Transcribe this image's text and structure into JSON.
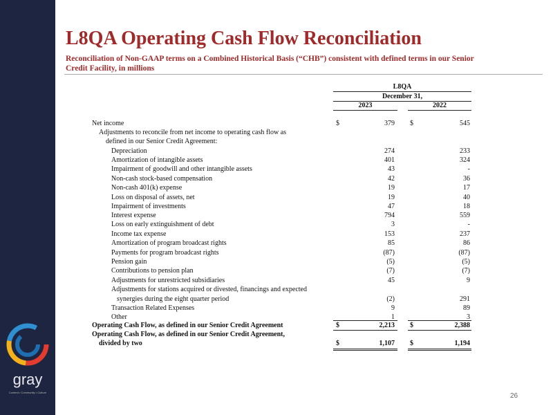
{
  "header": {
    "title": "L8QA Operating Cash Flow Reconciliation",
    "subtitle": "Reconciliation of Non-GAAP terms on a Combined Historical Basis (“CHB”) consistent with defined terms in our Senior Credit Facility, in millions"
  },
  "table": {
    "group": "L8QA",
    "period": "December 31,",
    "columns": [
      "2023",
      "2022"
    ],
    "rows": [
      {
        "label": "Net income",
        "d2023": "$",
        "v2023": "379",
        "d2022": "$",
        "v2022": "545"
      },
      {
        "label": "Adjustments to reconcile from net income to operating cash flow as"
      },
      {
        "label": "defined in our Senior Credit Agreement:"
      },
      {
        "label": "Depreciation",
        "v2023": "274",
        "v2022": "233"
      },
      {
        "label": "Amortization of intangible assets",
        "v2023": "401",
        "v2022": "324"
      },
      {
        "label": "Impairment of goodwill and other intangible assets",
        "v2023": "43",
        "v2022": "-"
      },
      {
        "label": "Non-cash stock-based compensation",
        "v2023": "42",
        "v2022": "36"
      },
      {
        "label": "Non-cash 401(k) expense",
        "v2023": "19",
        "v2022": "17"
      },
      {
        "label": "Loss on disposal of assets, net",
        "v2023": "19",
        "v2022": "40"
      },
      {
        "label": "Impairment of investments",
        "v2023": "47",
        "v2022": "18"
      },
      {
        "label": "Interest expense",
        "v2023": "794",
        "v2022": "559"
      },
      {
        "label": "Loss on early extinguishment of debt",
        "v2023": "3",
        "v2022": "-"
      },
      {
        "label": "Income tax expense",
        "v2023": "153",
        "v2022": "237"
      },
      {
        "label": "Amortization of program broadcast rights",
        "v2023": "85",
        "v2022": "86"
      },
      {
        "label": "Payments for program broadcast rights",
        "v2023": "(87)",
        "v2022": "(87)"
      },
      {
        "label": "Pension gain",
        "v2023": "(5)",
        "v2022": "(5)"
      },
      {
        "label": "Contributions to pension plan",
        "v2023": "(7)",
        "v2022": "(7)"
      },
      {
        "label": "Adjustments for unrestricted subsidiaries",
        "v2023": "45",
        "v2022": "9"
      },
      {
        "label": "Adjustments for stations acquired or divested, financings and expected"
      },
      {
        "label": "synergies during the eight quarter period",
        "v2023": "(2)",
        "v2022": "291"
      },
      {
        "label": "Transaction Related Expenses",
        "v2023": "9",
        "v2022": "89"
      },
      {
        "label": "Other",
        "v2023": "1",
        "v2022": "3"
      },
      {
        "label": "Operating Cash Flow, as defined in our Senior Credit Agreement",
        "d2023": "$",
        "v2023": "2,213",
        "d2022": "$",
        "v2022": "2,388"
      },
      {
        "label": "Operating Cash Flow, as defined in our Senior Credit Agreement,"
      },
      {
        "label": "divided by two",
        "d2023": "$",
        "v2023": "1,107",
        "d2022": "$",
        "v2022": "1,194"
      }
    ]
  },
  "logo": {
    "word": "gray",
    "tagline": "Content • Community • Culture"
  },
  "page_number": "26"
}
